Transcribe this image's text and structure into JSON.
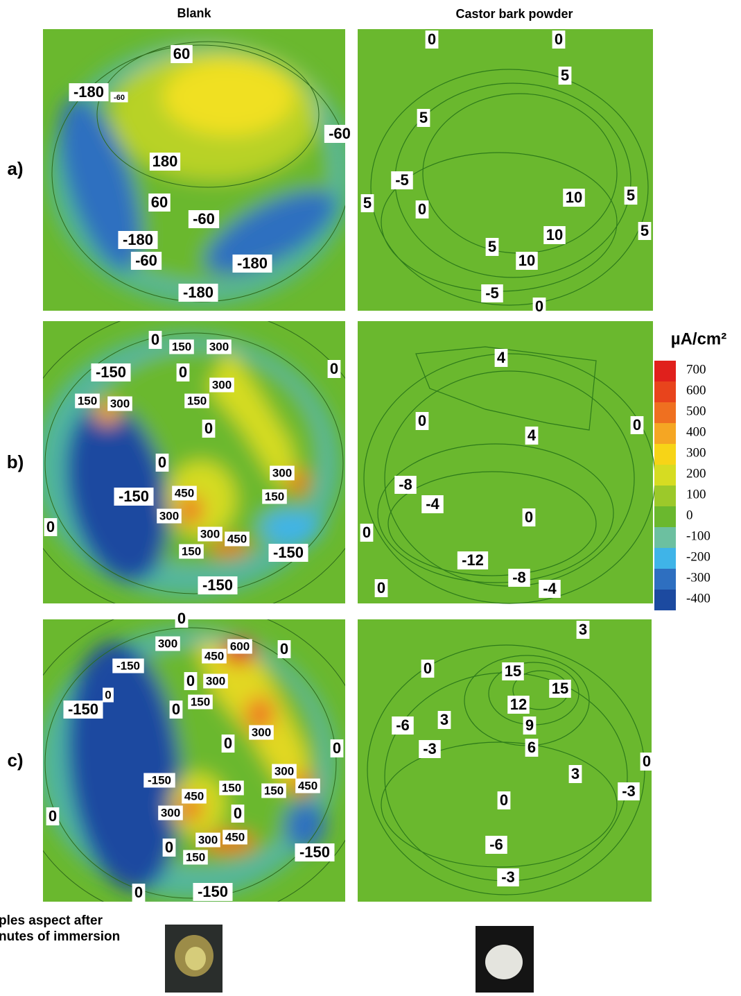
{
  "column_headers": [
    "Blank",
    "Castor bark powder"
  ],
  "row_labels": [
    "a)",
    "b)",
    "c)"
  ],
  "panels": [
    [
      60,
      -180,
      -60,
      -60,
      180,
      60,
      -60,
      -180,
      -60,
      -180,
      -180
    ],
    [
      0,
      0,
      5,
      5,
      -5,
      5,
      0,
      10,
      5,
      5,
      10,
      5,
      10,
      -5,
      0
    ],
    [
      0,
      150,
      300,
      -150,
      0,
      0,
      300,
      150,
      300,
      150,
      0,
      0,
      300,
      -150,
      450,
      150,
      300,
      0,
      300,
      450,
      150,
      -150,
      -150
    ],
    [
      4,
      0,
      4,
      0,
      -8,
      -4,
      0,
      0,
      -12,
      -8,
      -4,
      0
    ],
    [
      0,
      300,
      600,
      450,
      0,
      -150,
      0,
      300,
      0,
      -150,
      0,
      150,
      300,
      0,
      0,
      300,
      -150,
      150,
      150,
      450,
      450,
      300,
      0,
      0,
      300,
      450,
      0,
      150,
      -150,
      0,
      -150
    ],
    [
      3,
      0,
      15,
      15,
      12,
      -6,
      3,
      9,
      6,
      -3,
      3,
      0,
      -3,
      0,
      -6,
      -3
    ]
  ],
  "colorbar": {
    "title": "µA/cm²",
    "ticks": [
      700,
      600,
      500,
      400,
      300,
      200,
      100,
      0,
      -100,
      -200,
      -300,
      -400
    ],
    "colors": [
      "#e0201c",
      "#e8441c",
      "#ef7020",
      "#f5a623",
      "#f7d417",
      "#d6dc22",
      "#9cc92a",
      "#6ab82e",
      "#6cc0a0",
      "#3fb4e8",
      "#2e6fc0",
      "#1c4aa0"
    ]
  },
  "caption": [
    "ples aspect after",
    "nutes of immersion"
  ]
}
